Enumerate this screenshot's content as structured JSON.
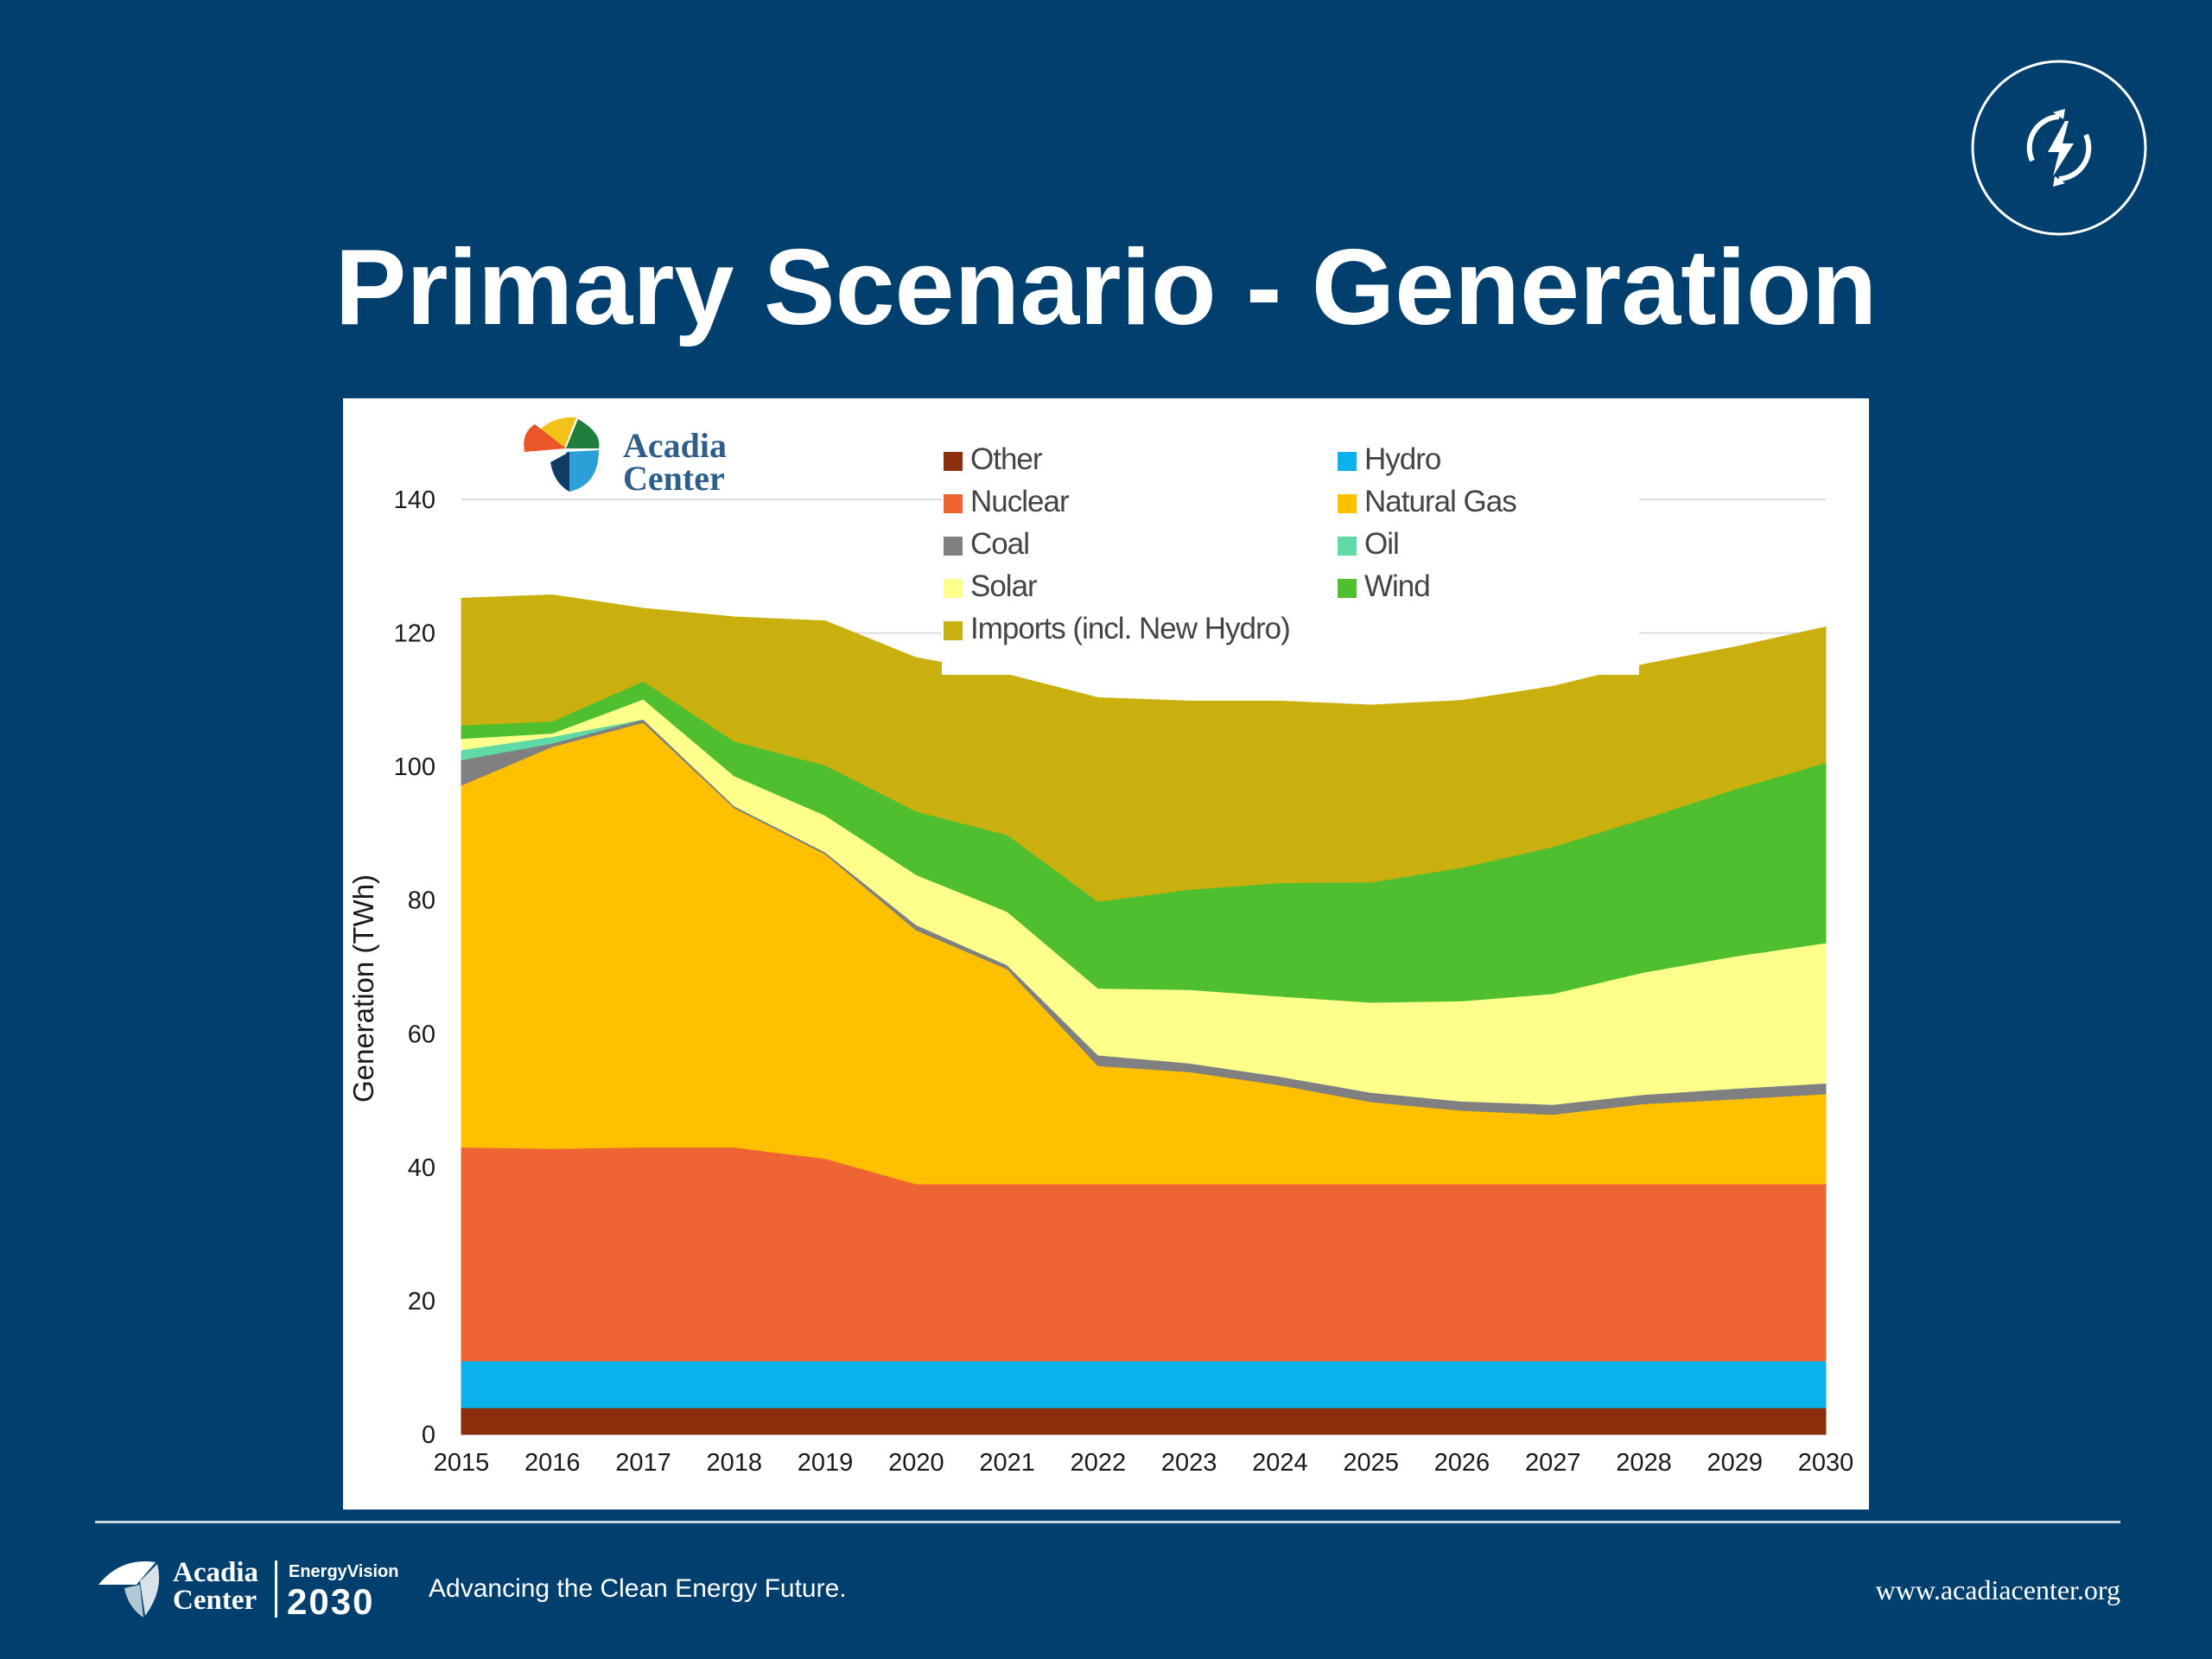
{
  "slide": {
    "title": "Primary Scenario - Generation",
    "footer": {
      "brand_line1": "Acadia",
      "brand_line2": "Center",
      "program_top": "EnergyVision",
      "program_year": "2030",
      "tagline": "Advancing the Clean Energy Future.",
      "url": "www.acadiacenter.org"
    },
    "chart_logo": {
      "line1": "Acadia",
      "line2": "Center"
    },
    "badge_icon": "lightning-bolt-cycle-icon",
    "colors": {
      "background": "#01406e",
      "panel": "#ffffff"
    }
  },
  "chart_data": {
    "type": "area",
    "stacked": true,
    "ylabel": "Generation (TWh)",
    "xlabel": "",
    "title": "",
    "x": [
      "2015",
      "2016",
      "2017",
      "2018",
      "2019",
      "2020",
      "2021",
      "2022",
      "2023",
      "2024",
      "2025",
      "2026",
      "2027",
      "2028",
      "2029",
      "2030"
    ],
    "ylim": [
      0,
      140
    ],
    "yticks": [
      0,
      20,
      40,
      60,
      80,
      100,
      120,
      140
    ],
    "grid": "horizontal",
    "legend_position": "top-right",
    "series": [
      {
        "name": "Other",
        "color": "#8b2e0c",
        "values": [
          4,
          4,
          4,
          4,
          4,
          4,
          4,
          4,
          4,
          4,
          4,
          4,
          4,
          4,
          4,
          4
        ]
      },
      {
        "name": "Hydro",
        "color": "#0cb2ec",
        "values": [
          7,
          7,
          7,
          7,
          7,
          7,
          7,
          7,
          7,
          7,
          7,
          7,
          7,
          7,
          7,
          7
        ]
      },
      {
        "name": "Nuclear",
        "color": "#ee6433",
        "values": [
          32,
          31.8,
          32,
          32,
          30.3,
          26.5,
          26.5,
          26.5,
          26.5,
          26.5,
          26.5,
          26.5,
          26.5,
          26.5,
          26.5,
          26.5
        ]
      },
      {
        "name": "Natural Gas",
        "color": "#ffc000",
        "values": [
          54.2,
          60.2,
          63.6,
          50.8,
          45.6,
          38,
          32.2,
          17.7,
          16.8,
          14.8,
          12.3,
          11,
          10.4,
          12,
          12.7,
          13.5
        ]
      },
      {
        "name": "Coal",
        "color": "#808080",
        "values": [
          3.8,
          0.5,
          0.5,
          0.3,
          0.3,
          0.8,
          0.6,
          1.6,
          1.3,
          1.3,
          1.4,
          1.4,
          1.5,
          1.4,
          1.6,
          1.6
        ]
      },
      {
        "name": "Oil",
        "color": "#5fd9a6",
        "values": [
          1.5,
          1,
          0,
          0,
          0,
          0,
          0,
          0,
          0,
          0,
          0,
          0,
          0,
          0,
          0,
          0
        ]
      },
      {
        "name": "Solar",
        "color": "#ffff8c",
        "values": [
          1.7,
          0.5,
          3,
          4.5,
          5.5,
          7.5,
          8,
          10,
          11,
          12,
          13.5,
          15,
          16.6,
          18.3,
          19.8,
          21
        ]
      },
      {
        "name": "Wind",
        "color": "#4fbf2f",
        "values": [
          2,
          1.8,
          2.7,
          5.2,
          7.5,
          9.5,
          11.5,
          13,
          15,
          17,
          18,
          20,
          22,
          23,
          25,
          27
        ]
      },
      {
        "name": "Imports (incl. New Hydro)",
        "color": "#c9b00f",
        "values": [
          19,
          18.9,
          10.9,
          18.6,
          21.6,
          23,
          24,
          30.5,
          28.2,
          27.2,
          26.5,
          25,
          24,
          23.1,
          21.3,
          20.3
        ]
      }
    ],
    "legend_order": [
      "Other",
      "Hydro",
      "Nuclear",
      "Natural Gas",
      "Coal",
      "Oil",
      "Solar",
      "Wind",
      "Imports (incl. New Hydro)"
    ]
  }
}
